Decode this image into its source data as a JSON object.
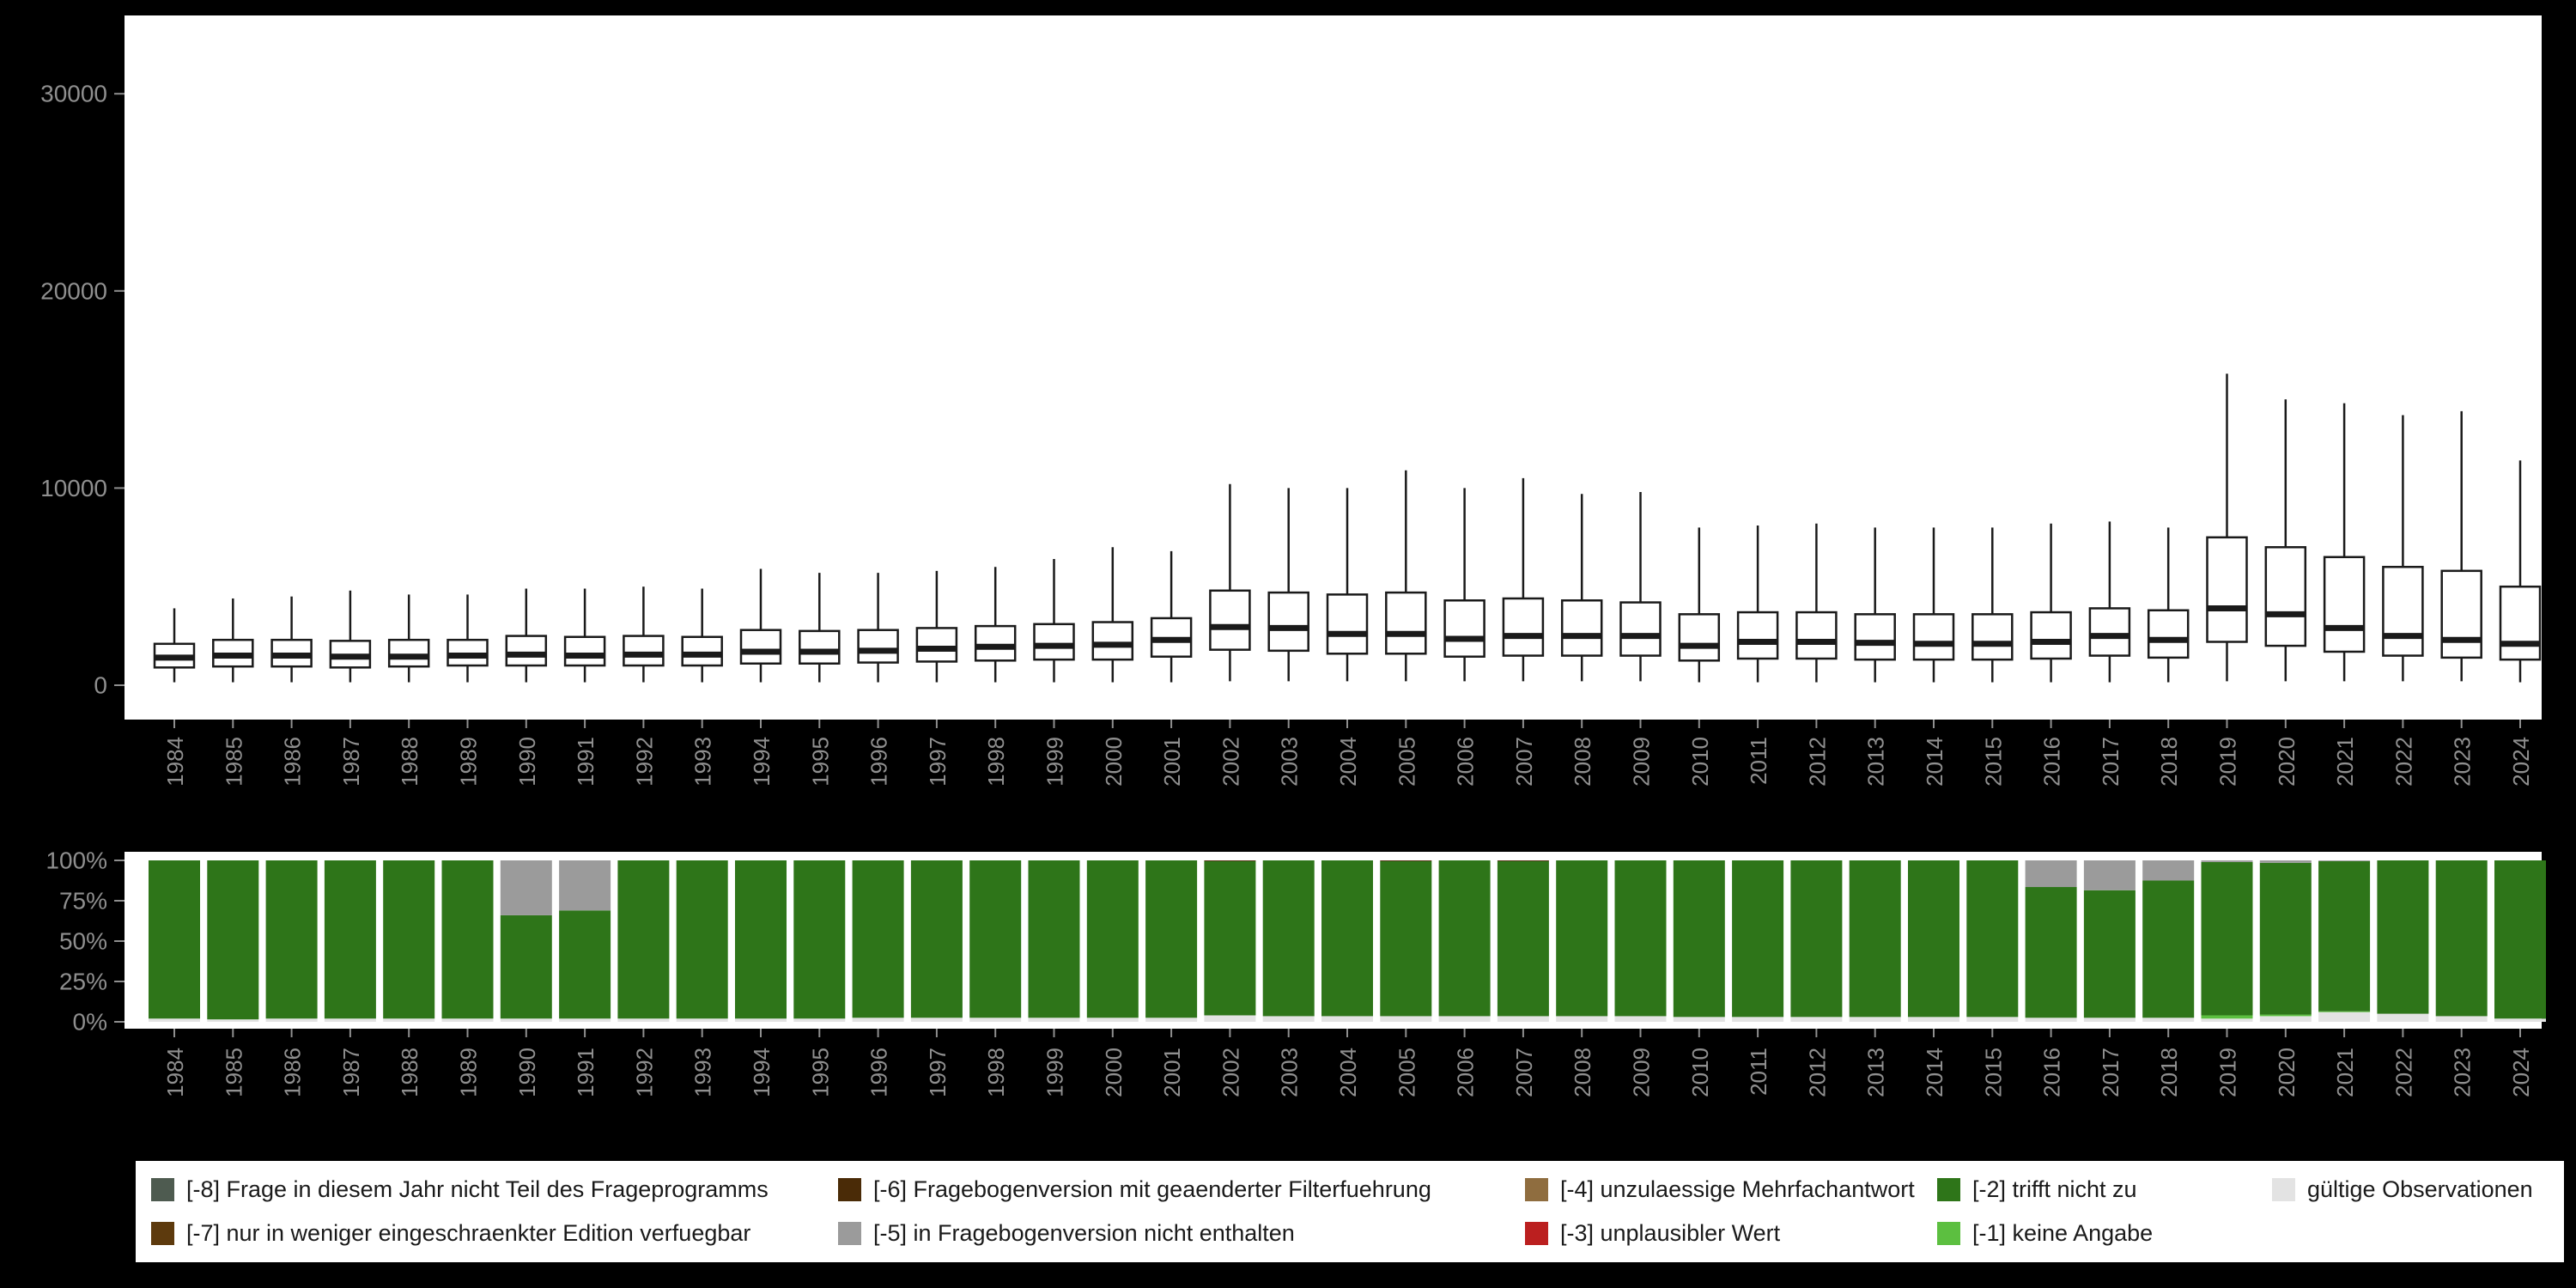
{
  "background_color": "#000000",
  "panel_color": "#ffffff",
  "axis_text_color": "#8f8f8f",
  "box_stroke_color": "#1a1a1a",
  "chart_data": [
    {
      "type": "boxplot",
      "title": "",
      "xlabel": "",
      "ylabel": "",
      "ylim": [
        0,
        30000
      ],
      "grid": false,
      "yticks": [
        {
          "value": 0,
          "label": "0"
        },
        {
          "value": 10000,
          "label": "10000"
        },
        {
          "value": 20000,
          "label": "20000"
        },
        {
          "value": 30000,
          "label": "30000"
        }
      ],
      "categories": [
        "1984",
        "1985",
        "1986",
        "1987",
        "1988",
        "1989",
        "1990",
        "1991",
        "1992",
        "1993",
        "1994",
        "1995",
        "1996",
        "1997",
        "1998",
        "1999",
        "2000",
        "2001",
        "2002",
        "2003",
        "2004",
        "2005",
        "2006",
        "2007",
        "2008",
        "2009",
        "2010",
        "2011",
        "2012",
        "2013",
        "2014",
        "2015",
        "2016",
        "2017",
        "2018",
        "2019",
        "2020",
        "2021",
        "2022",
        "2023",
        "2024"
      ],
      "box_format": [
        "whisker_low",
        "q1",
        "median",
        "q3",
        "whisker_high"
      ],
      "boxes": [
        [
          150,
          900,
          1400,
          2100,
          3900
        ],
        [
          150,
          950,
          1500,
          2300,
          4400
        ],
        [
          150,
          950,
          1500,
          2300,
          4500
        ],
        [
          150,
          900,
          1450,
          2250,
          4800
        ],
        [
          150,
          950,
          1450,
          2300,
          4600
        ],
        [
          150,
          1000,
          1500,
          2300,
          4600
        ],
        [
          150,
          1000,
          1550,
          2500,
          4900
        ],
        [
          150,
          1000,
          1500,
          2450,
          4900
        ],
        [
          150,
          1000,
          1550,
          2500,
          5000
        ],
        [
          150,
          1000,
          1550,
          2450,
          4900
        ],
        [
          150,
          1100,
          1700,
          2800,
          5900
        ],
        [
          150,
          1100,
          1700,
          2750,
          5700
        ],
        [
          150,
          1150,
          1750,
          2800,
          5700
        ],
        [
          150,
          1200,
          1850,
          2900,
          5800
        ],
        [
          150,
          1250,
          1950,
          3000,
          6000
        ],
        [
          150,
          1300,
          2000,
          3100,
          6400
        ],
        [
          150,
          1300,
          2050,
          3200,
          7000
        ],
        [
          150,
          1450,
          2300,
          3400,
          6800
        ],
        [
          200,
          1800,
          2950,
          4800,
          10200
        ],
        [
          200,
          1750,
          2900,
          4700,
          10000
        ],
        [
          200,
          1600,
          2600,
          4600,
          10000
        ],
        [
          200,
          1600,
          2600,
          4700,
          10900
        ],
        [
          200,
          1450,
          2350,
          4300,
          10000
        ],
        [
          200,
          1500,
          2500,
          4400,
          10500
        ],
        [
          200,
          1500,
          2500,
          4300,
          9700
        ],
        [
          200,
          1500,
          2500,
          4200,
          9800
        ],
        [
          150,
          1250,
          2000,
          3600,
          8000
        ],
        [
          150,
          1350,
          2200,
          3700,
          8100
        ],
        [
          150,
          1350,
          2200,
          3700,
          8200
        ],
        [
          150,
          1300,
          2150,
          3600,
          8000
        ],
        [
          150,
          1300,
          2100,
          3600,
          8000
        ],
        [
          150,
          1300,
          2100,
          3600,
          8000
        ],
        [
          150,
          1350,
          2200,
          3700,
          8200
        ],
        [
          150,
          1500,
          2500,
          3900,
          8300
        ],
        [
          150,
          1400,
          2300,
          3800,
          8000
        ],
        [
          200,
          2200,
          3900,
          7500,
          15800
        ],
        [
          200,
          2000,
          3600,
          7000,
          14500
        ],
        [
          200,
          1700,
          2900,
          6500,
          14300
        ],
        [
          200,
          1500,
          2500,
          6000,
          13700
        ],
        [
          200,
          1400,
          2300,
          5800,
          13900
        ],
        [
          150,
          1300,
          2100,
          5000,
          11400
        ]
      ]
    },
    {
      "type": "stacked-bar-percent",
      "title": "",
      "ylim": [
        0,
        100
      ],
      "grid": false,
      "yticks": [
        {
          "value": 100,
          "label": "100%"
        },
        {
          "value": 75,
          "label": "75%"
        },
        {
          "value": 50,
          "label": "50%"
        },
        {
          "value": 25,
          "label": "25%"
        },
        {
          "value": 0,
          "label": "0%"
        }
      ],
      "categories": [
        "1984",
        "1985",
        "1986",
        "1987",
        "1988",
        "1989",
        "1990",
        "1991",
        "1992",
        "1993",
        "1994",
        "1995",
        "1996",
        "1997",
        "1998",
        "1999",
        "2000",
        "2001",
        "2002",
        "2003",
        "2004",
        "2005",
        "2006",
        "2007",
        "2008",
        "2009",
        "2010",
        "2011",
        "2012",
        "2013",
        "2014",
        "2015",
        "2016",
        "2017",
        "2018",
        "2019",
        "2020",
        "2021",
        "2022",
        "2023",
        "2024"
      ],
      "stack_order_bottom_to_top": [
        "valid",
        "m1",
        "m2",
        "m5",
        "m6"
      ],
      "series": [
        {
          "key": "valid",
          "name": "gültige Observationen",
          "color": "#e3e3e3",
          "values": [
            2,
            1.5,
            2,
            2,
            2,
            2,
            2,
            2,
            2,
            2,
            2,
            2,
            2.5,
            2.5,
            2.5,
            2.5,
            2.5,
            2.5,
            4,
            3.5,
            3.5,
            3.5,
            3.5,
            3.5,
            3.5,
            3.5,
            3,
            3,
            3,
            3,
            3,
            3,
            2.5,
            2.5,
            2.5,
            2,
            3.5,
            6,
            5,
            3.5,
            2
          ]
        },
        {
          "key": "m1",
          "name": "[-1] keine Angabe",
          "color": "#5cbf40",
          "values": [
            0,
            0,
            0,
            0,
            0,
            0,
            0,
            0,
            0,
            0,
            0,
            0,
            0,
            0,
            0,
            0,
            0,
            0,
            0,
            0,
            0,
            0,
            0,
            0,
            0,
            0,
            0,
            0,
            0,
            0,
            0,
            0,
            0,
            0,
            0,
            2,
            1,
            0.5,
            0,
            0,
            0
          ]
        },
        {
          "key": "m2",
          "name": "[-2] trifft nicht zu",
          "color": "#2e7519",
          "values": [
            98,
            98.5,
            98,
            98,
            98,
            98,
            64,
            67,
            98,
            98,
            98,
            98,
            97.5,
            97.5,
            97.5,
            97.5,
            97.5,
            97.5,
            95.5,
            96.5,
            96.5,
            96,
            96.5,
            96,
            96.5,
            96.5,
            97,
            97,
            97,
            97,
            97,
            97,
            81,
            79,
            85,
            95,
            94,
            93,
            95,
            96.5,
            98
          ]
        },
        {
          "key": "m5",
          "name": "[-5] in Fragebogenversion nicht enthalten",
          "color": "#9b9b9b",
          "values": [
            0,
            0,
            0,
            0,
            0,
            0,
            34,
            31,
            0,
            0,
            0,
            0,
            0,
            0,
            0,
            0,
            0,
            0,
            0,
            0,
            0,
            0,
            0,
            0,
            0,
            0,
            0,
            0,
            0,
            0,
            0,
            0,
            16.5,
            18.5,
            12.5,
            1,
            1.5,
            0.5,
            0,
            0,
            0
          ]
        },
        {
          "key": "m6",
          "name": "[-6] Fragebogenversion mit geaenderter Filterfuehrung",
          "color": "#4a2b07",
          "values": [
            0,
            0,
            0,
            0,
            0,
            0,
            0,
            0,
            0,
            0,
            0,
            0,
            0,
            0,
            0,
            0,
            0,
            0,
            0.5,
            0,
            0,
            0.5,
            0,
            0.5,
            0,
            0,
            0,
            0,
            0,
            0,
            0,
            0,
            0,
            0,
            0,
            0,
            0,
            0,
            0,
            0,
            0
          ]
        }
      ]
    }
  ],
  "legend": {
    "items": [
      {
        "label": "[-8] Frage in diesem Jahr nicht Teil des Frageprogramms",
        "color": "#4e5b50"
      },
      {
        "label": "[-7] nur in weniger eingeschraenkter Edition verfuegbar",
        "color": "#5d3a0d"
      },
      {
        "label": "[-6] Fragebogenversion mit geaenderter Filterfuehrung",
        "color": "#4a2b07"
      },
      {
        "label": "[-5] in Fragebogenversion nicht enthalten",
        "color": "#9b9b9b"
      },
      {
        "label": "[-4] unzulaessige Mehrfachantwort",
        "color": "#8f6d3f"
      },
      {
        "label": "[-3] unplausibler Wert",
        "color": "#bb1f1f"
      },
      {
        "label": "[-2] trifft nicht zu",
        "color": "#2e7519"
      },
      {
        "label": "[-1] keine Angabe",
        "color": "#5cbf40"
      },
      {
        "label": "gültige Observationen",
        "color": "#e3e3e3"
      }
    ]
  }
}
